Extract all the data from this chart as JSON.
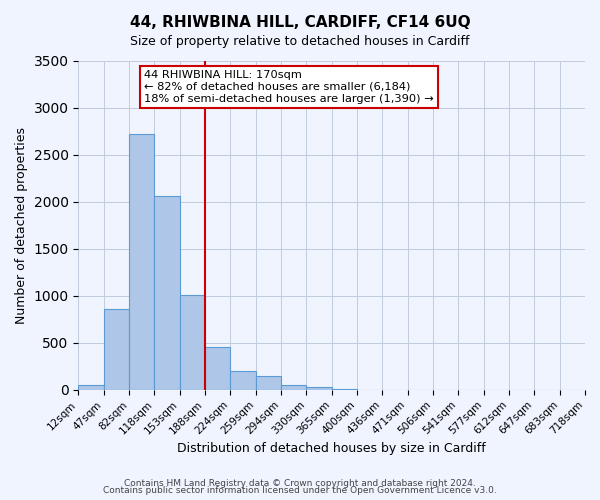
{
  "title": "44, RHIWBINA HILL, CARDIFF, CF14 6UQ",
  "subtitle": "Size of property relative to detached houses in Cardiff",
  "xlabel": "Distribution of detached houses by size in Cardiff",
  "ylabel": "Number of detached properties",
  "bar_values": [
    55,
    855,
    2720,
    2060,
    1010,
    455,
    205,
    145,
    55,
    30,
    10,
    0,
    0,
    0,
    0,
    0,
    0,
    0,
    0,
    0
  ],
  "bin_labels": [
    "12sqm",
    "47sqm",
    "82sqm",
    "118sqm",
    "153sqm",
    "188sqm",
    "224sqm",
    "259sqm",
    "294sqm",
    "330sqm",
    "365sqm",
    "400sqm",
    "436sqm",
    "471sqm",
    "506sqm",
    "541sqm",
    "577sqm",
    "612sqm",
    "647sqm",
    "683sqm",
    "718sqm"
  ],
  "bar_color": "#aec6e8",
  "bar_edge_color": "#5b9bd5",
  "vline_x": 5.0,
  "vline_color": "#cc0000",
  "ylim": [
    0,
    3500
  ],
  "yticks": [
    0,
    500,
    1000,
    1500,
    2000,
    2500,
    3000,
    3500
  ],
  "annotation_title": "44 RHIWBINA HILL: 170sqm",
  "annotation_line1": "← 82% of detached houses are smaller (6,184)",
  "annotation_line2": "18% of semi-detached houses are larger (1,390) →",
  "annotation_box_color": "#ffffff",
  "annotation_box_edge": "#cc0000",
  "footer1": "Contains HM Land Registry data © Crown copyright and database right 2024.",
  "footer2": "Contains public sector information licensed under the Open Government Licence v3.0.",
  "background_color": "#f0f4ff",
  "grid_color": "#c0ccdd"
}
